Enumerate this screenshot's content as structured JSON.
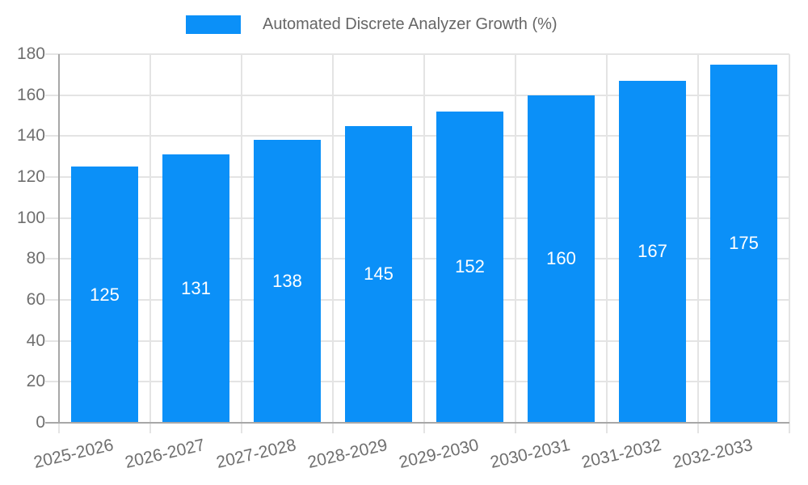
{
  "chart_data": {
    "type": "bar",
    "title": "Automated Discrete Analyzer Growth (%)",
    "categories": [
      "2025-2026",
      "2026-2027",
      "2027-2028",
      "2028-2029",
      "2029-2030",
      "2030-2031",
      "2031-2032",
      "2032-2033"
    ],
    "values": [
      125,
      131,
      138,
      145,
      152,
      160,
      167,
      175
    ],
    "xlabel": "",
    "ylabel": "",
    "ylim": [
      0,
      180
    ],
    "yticks": [
      0,
      20,
      40,
      60,
      80,
      100,
      120,
      140,
      160,
      180
    ],
    "grid": true,
    "legend_position": "top",
    "value_labels": "inside-center"
  },
  "colors": {
    "bar": "#0b90f8",
    "grid": "#e4e4e4",
    "axis": "#a7a7a7",
    "tick_label": "#6f6f6f",
    "legend_label": "#666666",
    "value_label": "#ffffff"
  }
}
